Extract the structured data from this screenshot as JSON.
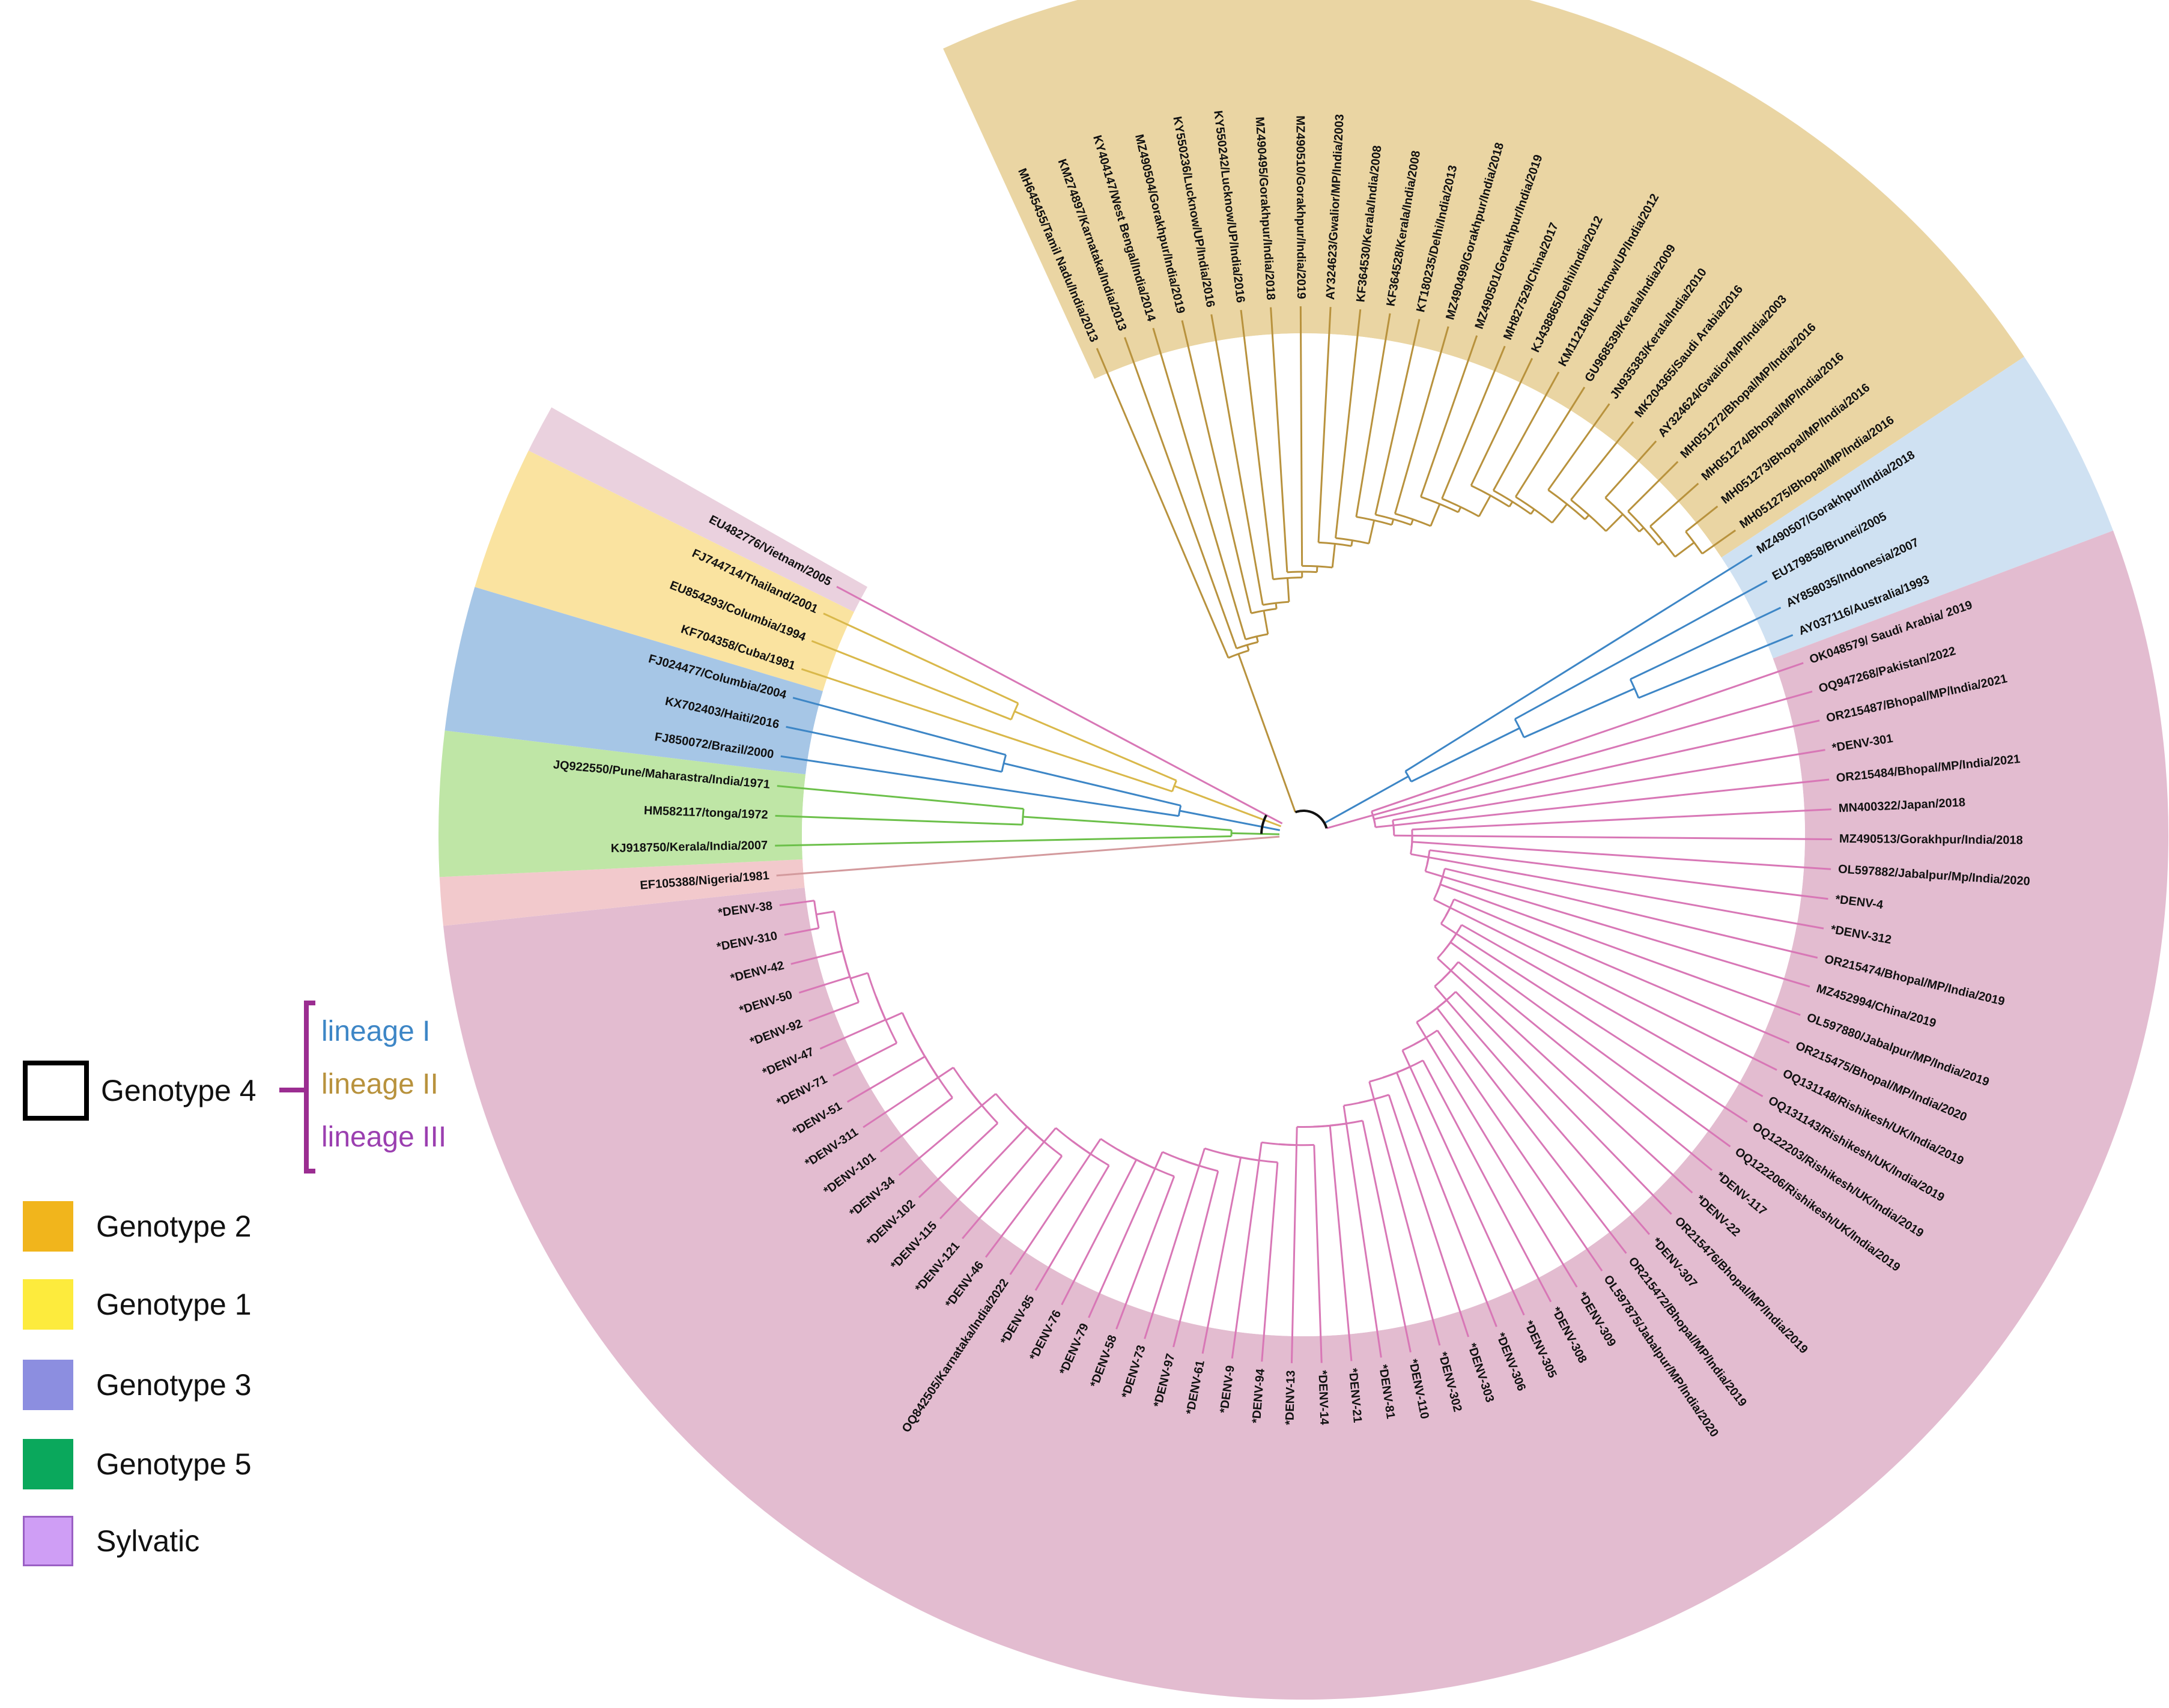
{
  "colors": {
    "lineage_I": "#3d86c6",
    "lineage_II": "#b8923d",
    "lineage_III": "#c05cad",
    "bracket": "#9b2d91",
    "genotype4_box": "#000000"
  },
  "tree": {
    "groups": [
      {
        "name": "lineage II",
        "band": "#ead5a3",
        "branch": "#b8923d",
        "leaves": [
          "MH645455/Tamil Nadu/India/2013",
          "KM274897/Karnataka/India/2013",
          "KY404147/West Bengal/India/2014",
          "MZ490504/Gorakhpur/India/2019",
          "KY550236/Lucknow/UP/India/2016",
          "KY550242/Lucknow/UP/India/2016",
          "MZ490495/Gorakhpur/India/2018",
          "MZ490510/Gorakhpur/India/2019",
          "AY324623/Gwalior/MP/India/2003",
          "KF364530/Kerala/India/2008",
          "KF364528/Kerala/India/2008",
          "KT180235/Delhi/India/2013",
          "MZ490499/Gorakhpur/India/2018",
          "MZ490501/Gorakhpur/India/2019",
          "MH827529/China/2017",
          "KJ438865/Delhi/India/2012",
          "KM112168/Lucknow/UP/India/2012",
          "GU968539/Kerala/India/2009",
          "JN935383/Kerala/India/2010",
          "MK204365/Saudi Arabia/2016",
          "AY324624/Gwalior/MP/India/2003",
          "MH051272/Bhopal/MP/India/2016",
          "MH051274/Bhopal/MP/India/2016",
          "MH051273/Bhopal/MP/India/2016",
          "MH051275/Bhopal/MP/India/2016"
        ]
      },
      {
        "name": "lineage I",
        "band": "#cfe1f2",
        "branch": "#3d86c6",
        "leaves": [
          "MZ490507/Gorakhpur/India/2018",
          "EU179858/Brunei/2005",
          "AY858035/Indonesia/2007",
          "AY037116/Australia/1993"
        ]
      },
      {
        "name": "lineage III",
        "band": "#e3bcd0",
        "branch": "#d877b6",
        "leaves": [
          "OK048579/ Saudi Arabia/ 2019",
          "OQ947268/Pakistan/2022",
          "OR215487/Bhopal/MP/India/2021",
          "*DENV-301",
          "OR215484/Bhopal/MP/India/2021",
          "MN400322/Japan/2018",
          "MZ490513/Gorakhpur/India/2018",
          "OL597882/Jabalpur/Mp/India/2020",
          "*DENV-4",
          "*DENV-312",
          "OR215474/Bhopal/MP/India/2019",
          "MZ452994/China/2019",
          "OL597880/Jabalpur/MP/India/2019",
          "OR215475/Bhopal/MP/India/2020",
          "OQ131148/Rishikesh/UK/India/2019",
          "OQ131143/Rishikesh/UK/India/2019",
          "OQ122203/Rishikesh/UK/India/2019",
          "OQ122206/Rishikesh/UK/India/2019",
          "*DENV-117",
          "*DENV-22",
          "OR215476/Bhopal/MP/India/2019",
          "*DENV-307",
          "OR215472/Bhopal/MP/India/2019",
          "OL597875/Jabalpur/MP/India/2020",
          "*DENV-309",
          "*DENV-308",
          "*DENV-305",
          "*DENV-306",
          "*DENV-303",
          "*DENV-302",
          "*DENV-110",
          "*DENV-81",
          "*DENV-21",
          "*DENV-14",
          "*DENV-13",
          "*DENV-94",
          "*DENV-9",
          "*DENV-61",
          "*DENV-97",
          "*DENV-73",
          "*DENV-58",
          "*DENV-79",
          "*DENV-76",
          "*DENV-85",
          "OQ842505/Karnataka/India/2022",
          "*DENV-46",
          "*DENV-121",
          "*DENV-115",
          "*DENV-102",
          "*DENV-34",
          "*DENV-101",
          "*DENV-311",
          "*DENV-51",
          "*DENV-71",
          "*DENV-47",
          "*DENV-92",
          "*DENV-50",
          "*DENV-42",
          "*DENV-310",
          "*DENV-38"
        ]
      },
      {
        "name": "Sylvatic",
        "band": "#f2c9cc",
        "branch": "#d39a9d",
        "leaves": [
          "EF105388/Nigeria/1981"
        ]
      },
      {
        "name": "Genotype 5",
        "band": "#bfe6a6",
        "branch": "#6cc04a",
        "leaves": [
          "KJ918750/Kerala/India/2007",
          "HM582117/tonga/1972",
          "JQ922550/Pune/Maharastra/India/1971"
        ]
      },
      {
        "name": "Genotype 3",
        "band": "#a6c6e6",
        "branch": "#3d86c6",
        "leaves": [
          "FJ850072/Brazil/2000",
          "KX702403/Haiti/2016",
          "FJ024477/Columbia/2004"
        ]
      },
      {
        "name": "Genotype 1",
        "band": "#fae3a0",
        "branch": "#d9b84a",
        "leaves": [
          "KF704358/Cuba/1981",
          "EU854293/Columbia/1994",
          "FJ744714/Thailand/2001"
        ]
      },
      {
        "name": "Genotype 2",
        "band": "#ead1de",
        "branch": "#d877b6",
        "leaves": [
          "EU482776/Vietnam/2005"
        ]
      }
    ]
  },
  "legend": {
    "genotype4": "Genotype 4",
    "lineages": [
      {
        "label": "lineage I",
        "color": "#3d86c6"
      },
      {
        "label": "lineage II",
        "color": "#b8923d"
      },
      {
        "label": "lineage III",
        "color": "#9b3fb0"
      }
    ],
    "items": [
      {
        "label": "Genotype 2",
        "color": "#f1b51c"
      },
      {
        "label": "Genotype 1",
        "color": "#fdeb3d"
      },
      {
        "label": "Genotype 3",
        "color": "#8c8ee0"
      },
      {
        "label": "Genotype 5",
        "color": "#0aa85c"
      },
      {
        "label": "Sylvatic",
        "color": "#cf9ef5"
      }
    ]
  }
}
